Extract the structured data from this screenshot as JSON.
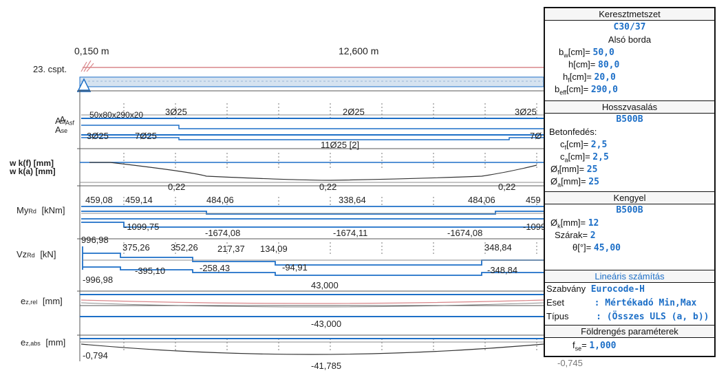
{
  "span": {
    "left_dim": "0,150 m",
    "mid_dim": "12,600 m",
    "support_label": "23. cspt."
  },
  "rows": {
    "asf_label": "Asf",
    "ase_label": "Ase",
    "as_top_left": "50x80x290x20",
    "as_top_1": "3Ø25",
    "as_top_mid": "2Ø25",
    "as_top_right": "3Ø25",
    "as_bot_left": "3Ø25",
    "as_bot_2": "7Ø25",
    "as_bot_mid": "11Ø25 [2]",
    "as_bot_right": "7Ø",
    "wk_label_f": "w k(f) [mm]",
    "wk_label_a": "w k(a) [mm]",
    "wk_vals": [
      "0,22",
      "0,22",
      "0,22"
    ],
    "my_label": "My",
    "my_sub": "Rd",
    "my_unit": "[kNm]",
    "my_top": [
      "459,08",
      "459,14",
      "484,06",
      "338,64",
      "484,06",
      "459"
    ],
    "my_bot": [
      "-1099,75",
      "-1674,08",
      "-1674,11",
      "-1674,08",
      "-1099"
    ],
    "vz_label": "Vz",
    "vz_sub": "Rd",
    "vz_unit": "[kN]",
    "vz_top": [
      "996,98",
      "375,26",
      "352,26",
      "217,37",
      "134,09",
      "348,84"
    ],
    "vz_bot": [
      "-395,10",
      "-258,43",
      "-94,91",
      "-348,84",
      "-996,98"
    ],
    "ezrel_label": "e",
    "ezrel_sub": "z,rel",
    "ezrel_unit": "[mm]",
    "ezrel_top": "43,000",
    "ezrel_bot": "-43,000",
    "ezabs_label": "e",
    "ezabs_sub": "z,abs",
    "ezabs_unit": "[mm]",
    "ezabs_left": "-0,794",
    "ezabs_min": "-41,785",
    "ezabs_right": "-0,745"
  },
  "panel": {
    "cross_section_title": "Keresztmetszet",
    "concrete": "C30/37",
    "rib": "Alsó borda",
    "bw": "bw[cm]= 50,0",
    "bw_label": "b",
    "bw_sub": "w",
    "bw_unit": "[cm]=",
    "bw_val": "50,0",
    "h_label": "h[cm]=",
    "h_val": "80,0",
    "hf_label": "h",
    "hf_sub": "f",
    "hf_unit": "[cm]=",
    "hf_val": "20,0",
    "beff_label": "b",
    "beff_sub": "eff",
    "beff_unit": "[cm]=",
    "beff_val": "290,0",
    "long_title": "Hosszvasalás",
    "long_steel": "B500B",
    "cover_title": "Betonfedés:",
    "cf_label": "c",
    "cf_sub": "f",
    "cf_unit": "[cm]=",
    "cf_val": "2,5",
    "ca_label": "c",
    "ca_sub": "a",
    "ca_unit": "[cm]=",
    "ca_val": "2,5",
    "df_label": "Ø",
    "df_sub": "f",
    "df_unit": "[mm]=",
    "df_val": "25",
    "da_label": "Ø",
    "da_sub": "a",
    "da_unit": "[mm]=",
    "da_val": "25",
    "stirrup_title": "Kengyel",
    "stirrup_steel": "B500B",
    "dk_label": "Ø",
    "dk_sub": "k",
    "dk_unit": "[mm]=",
    "dk_val": "12",
    "legs_label": "Szárak=",
    "legs_val": "2",
    "theta_label": "θ[°]=",
    "theta_val": "45,00",
    "linear_title": "Lineáris számítás",
    "std_label": "Szabvány",
    "std_val": "Eurocode-H",
    "case_label": "Eset",
    "case_val": ": Mértékadó Min,Max",
    "type_label": "Típus",
    "type_val": ": (Összes ULS (a, b))",
    "seismic_title": "Földrengés paraméterek",
    "fse_label": "f",
    "fse_sub": "se",
    "fse_unit": "=",
    "fse_val": "1,000"
  },
  "colors": {
    "blue": "#1d6fc7",
    "pink": "#d9868a",
    "grey": "#8c8c8c",
    "dark": "#222222"
  }
}
